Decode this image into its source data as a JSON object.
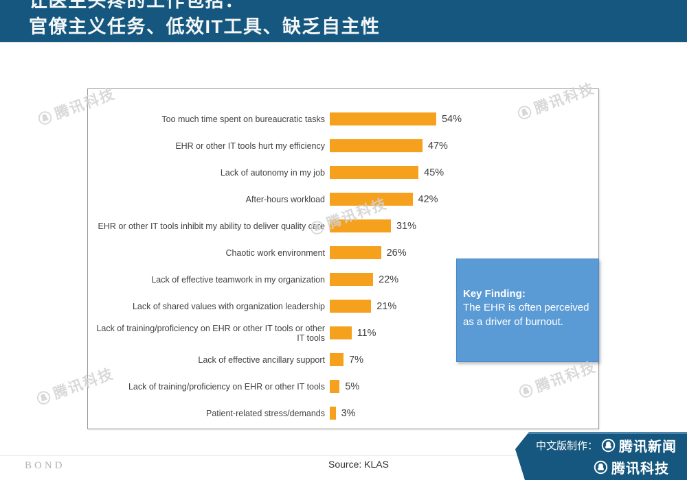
{
  "slide": {
    "title_line1": "让医生头疼的工作包括：",
    "title_line2": "官僚主义任务、低效IT工具、缺乏自主性"
  },
  "chart_data": {
    "type": "bar",
    "orientation": "horizontal",
    "categories": [
      "Too much time spent on bureaucratic tasks",
      "EHR or other IT tools hurt my efficiency",
      "Lack of autonomy in my job",
      "After-hours workload",
      "EHR or other IT tools inhibit my ability to deliver quality care",
      "Chaotic work environment",
      "Lack of effective teamwork in my organization",
      "Lack of shared values with organization leadership",
      "Lack of training/proficiency on EHR or other IT tools or other IT tools",
      "Lack of effective ancillary support",
      "Lack of training/proficiency on EHR or other IT tools",
      "Patient-related stress/demands"
    ],
    "values": [
      54,
      47,
      45,
      42,
      31,
      26,
      22,
      21,
      11,
      7,
      5,
      3
    ],
    "value_labels": [
      "54%",
      "47%",
      "45%",
      "42%",
      "31%",
      "26%",
      "22%",
      "21%",
      "11%",
      "7%",
      "5%",
      "3%"
    ],
    "unit": "%",
    "xlim": [
      0,
      60
    ],
    "grid": false,
    "legend": "none",
    "bar_color": "#F5A11E",
    "source": "Source: KLAS"
  },
  "key_finding": {
    "heading": "Key Finding:",
    "body": "The EHR is often perceived as a driver of burnout.",
    "bg_color": "#5B9BD5"
  },
  "watermark": {
    "text": "腾讯科技"
  },
  "footer": {
    "logo": "BOND"
  },
  "ribbon": {
    "prefix": "中文版制作：",
    "brand1": "腾讯新闻",
    "brand2": "腾讯科技"
  },
  "colors": {
    "banner": "#15577E",
    "bar": "#F5A11E",
    "key_box": "#5B9BD5",
    "watermark": "#D2D2D2"
  }
}
